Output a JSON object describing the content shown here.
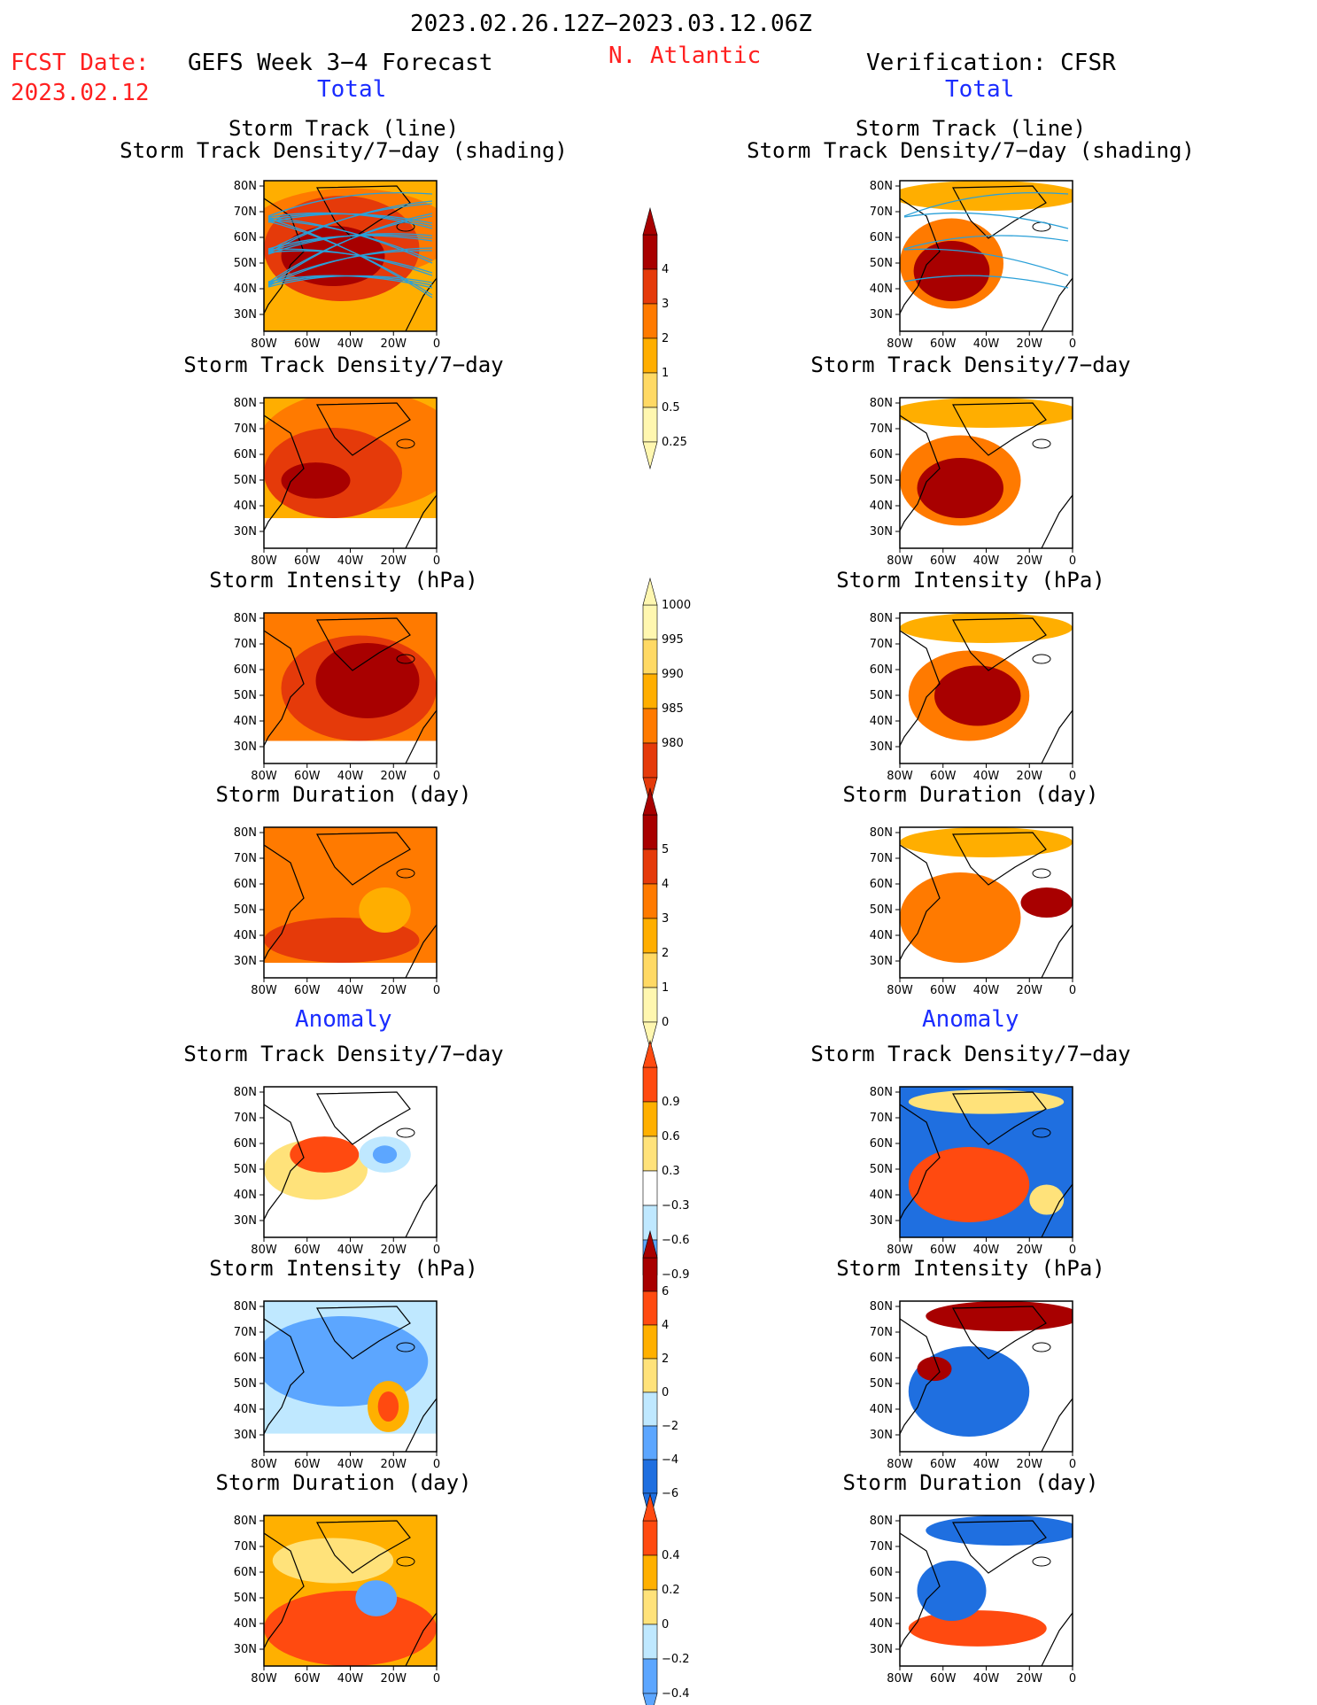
{
  "header": {
    "date_range": "2023.02.26.12Z−2023.03.12.06Z",
    "fcst_label": "FCST Date:",
    "fcst_date": "2023.02.12",
    "left_title": "GEFS Week 3−4 Forecast",
    "region": "N. Atlantic",
    "right_title": "Verification: CFSR",
    "total_label": "Total",
    "anomaly_label": "Anomaly"
  },
  "panel_titles": {
    "track_line": "Storm Track (line)",
    "track_shading": "Storm Track Density/7−day (shading)",
    "density": "Storm Track Density/7−day",
    "intensity": "Storm Intensity (hPa)",
    "duration": "Storm Duration (day)"
  },
  "axes": {
    "lat_ticks": [
      "80N",
      "70N",
      "60N",
      "50N",
      "40N",
      "30N"
    ],
    "lon_ticks": [
      "80W",
      "60W",
      "40W",
      "20W",
      "0"
    ]
  },
  "colorbars": {
    "total_density": [
      "4",
      "3",
      "2",
      "1",
      "0.5",
      "0.25"
    ],
    "total_intensity": [
      "1000",
      "995",
      "990",
      "985",
      "980"
    ],
    "total_duration": [
      "5",
      "4",
      "3",
      "2",
      "1",
      "0"
    ],
    "anom_density": [
      "0.9",
      "0.6",
      "0.3",
      "−0.3",
      "−0.6",
      "−0.9"
    ],
    "anom_intensity": [
      "6",
      "4",
      "2",
      "0",
      "−2",
      "−4",
      "−6"
    ],
    "anom_duration": [
      "0.4",
      "0.2",
      "0",
      "−0.2",
      "−0.4"
    ]
  },
  "colors": {
    "title_red": "#ff2020",
    "label_blue": "#1a2cff",
    "track_line": "#2aa0d8",
    "warm": [
      "#fff7b0",
      "#ffd964",
      "#ffae00",
      "#ff7a00",
      "#e53a0a",
      "#a80000"
    ],
    "anom": [
      "#1f6fe0",
      "#5ca6ff",
      "#bfe8ff",
      "#ffffff",
      "#ffe27a",
      "#ffb000",
      "#ff4a10",
      "#a80000"
    ]
  }
}
